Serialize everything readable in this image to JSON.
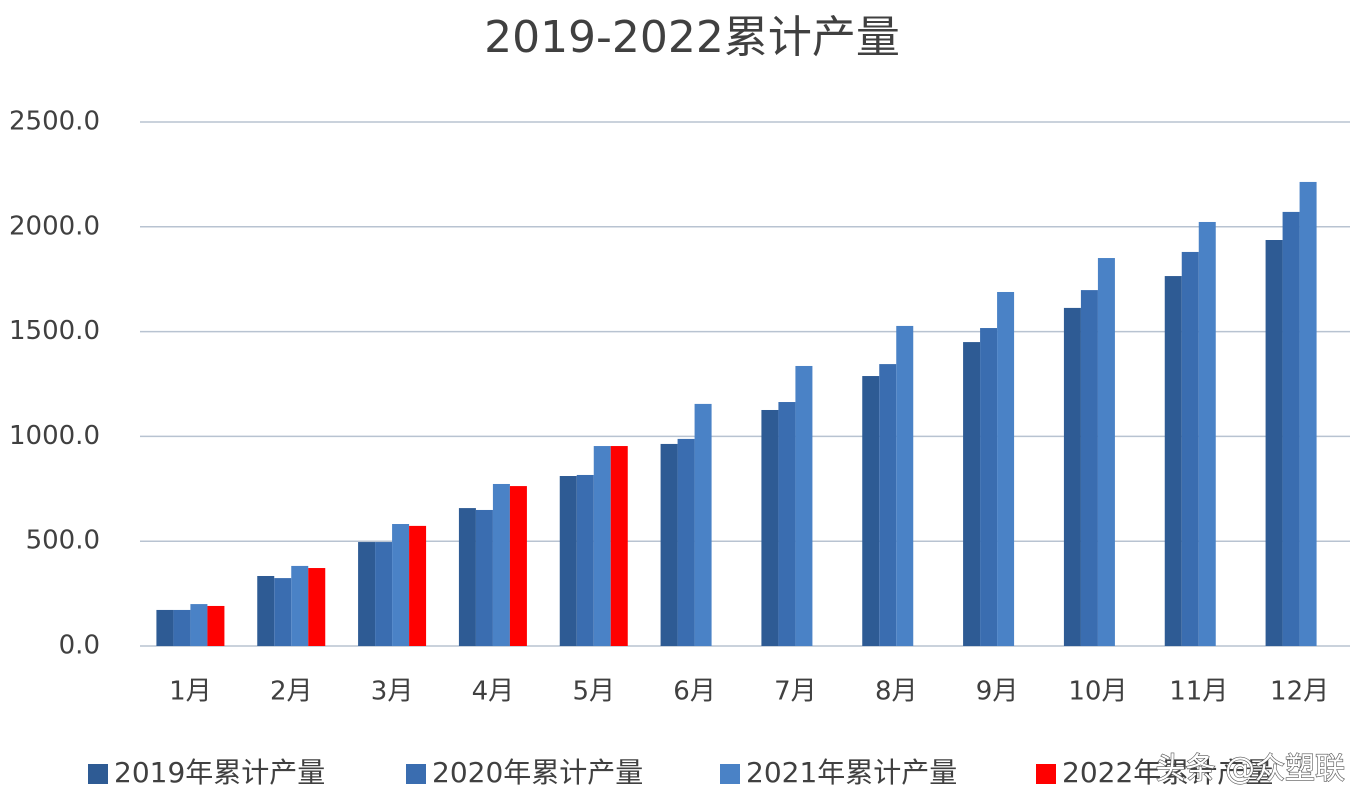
{
  "chart_data": {
    "type": "bar",
    "title": "2019-2022累计产量",
    "categories": [
      "1月",
      "2月",
      "3月",
      "4月",
      "5月",
      "6月",
      "7月",
      "8月",
      "9月",
      "10月",
      "11月",
      "12月"
    ],
    "series": [
      {
        "name": "2019年累计产量",
        "color": "#2e5b94",
        "values": [
          172,
          334,
          496,
          658,
          811,
          964,
          1126,
          1288,
          1450,
          1613,
          1765,
          1937
        ]
      },
      {
        "name": "2020年累计产量",
        "color": "#3a6db0",
        "values": [
          172,
          324,
          496,
          649,
          816,
          988,
          1164,
          1345,
          1517,
          1698,
          1880,
          2071
        ]
      },
      {
        "name": "2021年累计产量",
        "color": "#4a82c6",
        "values": [
          200,
          382,
          582,
          773,
          954,
          1155,
          1336,
          1527,
          1689,
          1851,
          2023,
          2214
        ]
      },
      {
        "name": "2022年累计产量",
        "color": "#ff0000",
        "values": [
          191,
          372,
          573,
          763,
          954,
          null,
          null,
          null,
          null,
          null,
          null,
          null
        ]
      }
    ],
    "ylim": [
      0,
      2500
    ],
    "yticks": [
      {
        "value": 0,
        "label": "0.0"
      },
      {
        "value": 500,
        "label": "500.0"
      },
      {
        "value": 1000,
        "label": "1000.0"
      },
      {
        "value": 1500,
        "label": "1500.0"
      },
      {
        "value": 2000,
        "label": "2000.0"
      },
      {
        "value": 2500,
        "label": "2500.0"
      }
    ],
    "grid": true,
    "legend": "bottom",
    "watermark": "头条 @众塑联"
  }
}
